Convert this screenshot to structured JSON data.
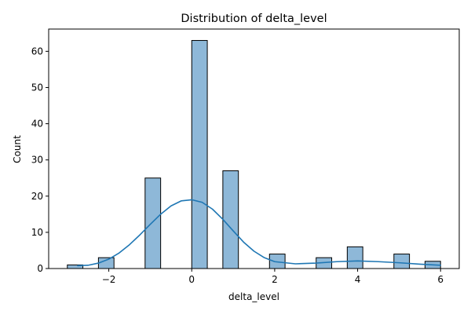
{
  "chart_data": {
    "type": "bar",
    "title": "Distribution of delta_level",
    "xlabel": "delta_level",
    "ylabel": "Count",
    "xlim": [
      -3.45,
      6.45
    ],
    "ylim": [
      0,
      66.15
    ],
    "x_ticks": [
      -2,
      0,
      2,
      4,
      6
    ],
    "x_tick_labels": [
      "−2",
      "0",
      "2",
      "4",
      "6"
    ],
    "y_ticks": [
      0,
      10,
      20,
      30,
      40,
      50,
      60
    ],
    "y_tick_labels": [
      "0",
      "10",
      "20",
      "30",
      "40",
      "50",
      "60"
    ],
    "grid": false,
    "legend": false,
    "bin_width": 0.375,
    "bins": [
      {
        "left": -3.0,
        "count": 1
      },
      {
        "left": -2.25,
        "count": 3
      },
      {
        "left": -1.125,
        "count": 25
      },
      {
        "left": 0.0,
        "count": 63
      },
      {
        "left": 0.75,
        "count": 27
      },
      {
        "left": 1.875,
        "count": 4
      },
      {
        "left": 3.0,
        "count": 3
      },
      {
        "left": 3.75,
        "count": 6
      },
      {
        "left": 4.875,
        "count": 4
      },
      {
        "left": 5.625,
        "count": 2
      }
    ],
    "kde": {
      "x": [
        -2.75,
        -2.5,
        -2.25,
        -2.0,
        -1.75,
        -1.5,
        -1.25,
        -1.0,
        -0.75,
        -0.5,
        -0.25,
        0.0,
        0.25,
        0.5,
        0.75,
        1.0,
        1.25,
        1.5,
        1.75,
        2.0,
        2.5,
        3.0,
        3.5,
        4.0,
        4.5,
        5.0,
        5.5,
        6.0
      ],
      "y": [
        0.8,
        0.9,
        1.5,
        2.6,
        4.3,
        6.6,
        9.3,
        12.2,
        15.0,
        17.3,
        18.7,
        19.0,
        18.3,
        16.4,
        13.6,
        10.4,
        7.3,
        4.8,
        3.0,
        1.9,
        1.3,
        1.5,
        1.9,
        2.1,
        1.9,
        1.6,
        1.2,
        0.9
      ]
    },
    "colors": {
      "bar_fill": "#8eb8d8",
      "bar_edge": "#000000",
      "kde_line": "#1f77b4",
      "axis": "#000000"
    }
  }
}
